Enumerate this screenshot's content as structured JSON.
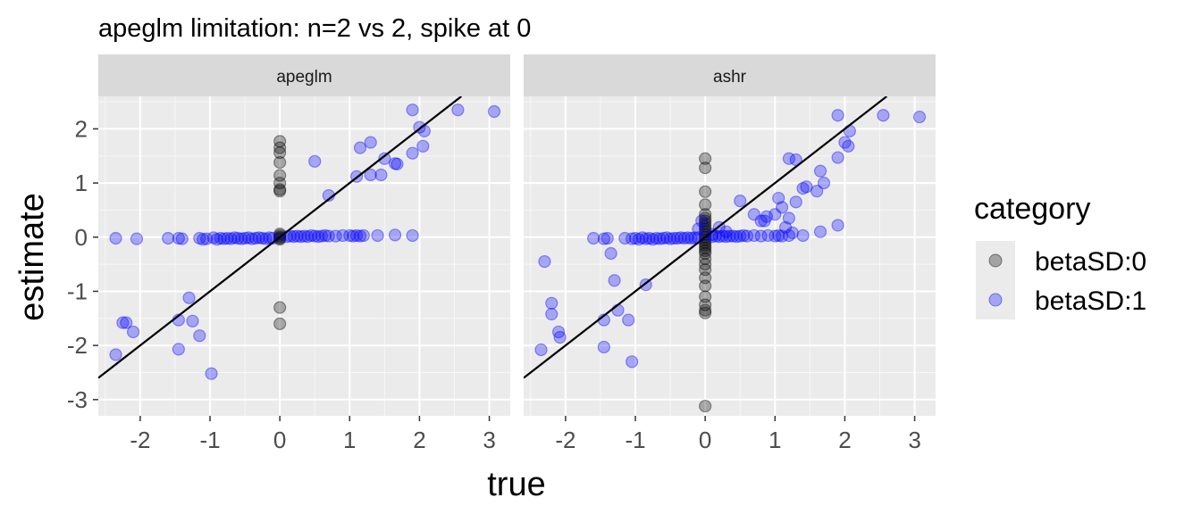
{
  "title": "apeglm limitation: n=2 vs 2, spike at 0",
  "chart_data": {
    "type": "scatter",
    "xlabel": "true",
    "ylabel": "estimate",
    "xlim": [
      -2.6,
      3.3
    ],
    "ylim": [
      -3.3,
      2.6
    ],
    "x_ticks": [
      -2,
      -1,
      0,
      1,
      2,
      3
    ],
    "y_ticks": [
      -3,
      -2,
      -1,
      0,
      1,
      2
    ],
    "x_tick_labels": [
      "-2",
      "-1",
      "0",
      "1",
      "2",
      "3"
    ],
    "y_tick_labels": [
      "-3",
      "-2",
      "-1",
      "0",
      "1",
      "2"
    ],
    "grid": true,
    "reference_line": "y = x",
    "legend": {
      "title": "category",
      "placement": "right",
      "entries": [
        {
          "label": "betaSD:0",
          "color": "#000000"
        },
        {
          "label": "betaSD:1",
          "color": "#0000ff"
        }
      ]
    },
    "panels": [
      {
        "label": "apeglm",
        "series": [
          {
            "name": "betaSD:0",
            "color": "#000000",
            "points": [
              [
                0,
                1.77
              ],
              [
                0,
                1.65
              ],
              [
                0,
                1.56
              ],
              [
                0,
                1.38
              ],
              [
                0,
                1.14
              ],
              [
                0,
                1.0
              ],
              [
                0,
                0.88
              ],
              [
                0,
                0.85
              ],
              [
                0,
                0.06
              ],
              [
                0,
                0.03
              ],
              [
                0,
                0.0
              ],
              [
                0,
                -0.02
              ],
              [
                0,
                -0.04
              ],
              [
                0,
                -1.3
              ],
              [
                0,
                -1.6
              ]
            ]
          },
          {
            "name": "betaSD:1",
            "color": "#0000ff",
            "points": [
              [
                -2.35,
                -0.02
              ],
              [
                -2.05,
                -0.03
              ],
              [
                -1.6,
                -0.02
              ],
              [
                -1.45,
                -0.02
              ],
              [
                -1.4,
                -0.03
              ],
              [
                -1.15,
                -0.02
              ],
              [
                -1.1,
                -0.04
              ],
              [
                -1.05,
                -0.03
              ],
              [
                -0.95,
                -0.01
              ],
              [
                -0.9,
                -0.04
              ],
              [
                -0.85,
                -0.02
              ],
              [
                -0.8,
                -0.03
              ],
              [
                -0.75,
                -0.02
              ],
              [
                -0.7,
                -0.03
              ],
              [
                -0.65,
                -0.01
              ],
              [
                -0.6,
                -0.02
              ],
              [
                -0.55,
                -0.03
              ],
              [
                -0.5,
                -0.02
              ],
              [
                -0.45,
                -0.01
              ],
              [
                -0.4,
                -0.03
              ],
              [
                -0.35,
                -0.02
              ],
              [
                -0.3,
                -0.01
              ],
              [
                -0.25,
                -0.02
              ],
              [
                -0.2,
                -0.03
              ],
              [
                -0.15,
                -0.01
              ],
              [
                -0.1,
                -0.02
              ],
              [
                0.1,
                0.01
              ],
              [
                0.15,
                0.02
              ],
              [
                0.2,
                0.01
              ],
              [
                0.25,
                0.02
              ],
              [
                0.3,
                0.01
              ],
              [
                0.35,
                0.02
              ],
              [
                0.4,
                0.01
              ],
              [
                0.45,
                0.03
              ],
              [
                0.5,
                0.02
              ],
              [
                0.55,
                0.01
              ],
              [
                0.6,
                0.02
              ],
              [
                0.65,
                0.03
              ],
              [
                0.7,
                0.02
              ],
              [
                0.8,
                0.02
              ],
              [
                0.9,
                0.03
              ],
              [
                1.0,
                0.03
              ],
              [
                1.05,
                0.02
              ],
              [
                1.1,
                0.03
              ],
              [
                1.15,
                0.02
              ],
              [
                1.2,
                0.03
              ],
              [
                1.4,
                0.03
              ],
              [
                1.65,
                0.04
              ],
              [
                1.9,
                0.03
              ],
              [
                -2.35,
                -2.17
              ],
              [
                -2.25,
                -1.58
              ],
              [
                -2.2,
                -1.58
              ],
              [
                -2.1,
                -1.75
              ],
              [
                -1.45,
                -1.53
              ],
              [
                -1.45,
                -2.07
              ],
              [
                -1.3,
                -1.12
              ],
              [
                -1.25,
                -1.55
              ],
              [
                -1.15,
                -1.82
              ],
              [
                -0.98,
                -2.52
              ],
              [
                0.5,
                1.4
              ],
              [
                0.7,
                0.77
              ],
              [
                1.1,
                1.12
              ],
              [
                1.15,
                1.65
              ],
              [
                1.3,
                1.75
              ],
              [
                1.3,
                1.15
              ],
              [
                1.45,
                1.15
              ],
              [
                1.5,
                1.45
              ],
              [
                1.65,
                1.36
              ],
              [
                1.68,
                1.35
              ],
              [
                1.9,
                2.35
              ],
              [
                1.9,
                1.55
              ],
              [
                2.0,
                2.03
              ],
              [
                2.05,
                1.68
              ],
              [
                2.07,
                1.96
              ],
              [
                2.55,
                2.35
              ],
              [
                3.07,
                2.32
              ]
            ]
          }
        ]
      },
      {
        "label": "ashr",
        "series": [
          {
            "name": "betaSD:0",
            "color": "#000000",
            "points": [
              [
                0,
                1.45
              ],
              [
                0,
                1.28
              ],
              [
                0,
                0.84
              ],
              [
                0,
                0.6
              ],
              [
                0,
                0.42
              ],
              [
                0,
                0.35
              ],
              [
                0,
                0.3
              ],
              [
                0,
                0.25
              ],
              [
                0,
                0.2
              ],
              [
                0,
                0.15
              ],
              [
                0,
                0.1
              ],
              [
                0,
                0.05
              ],
              [
                0,
                0.0
              ],
              [
                0,
                -0.05
              ],
              [
                0,
                -0.1
              ],
              [
                0,
                -0.15
              ],
              [
                0,
                -0.2
              ],
              [
                0,
                -0.25
              ],
              [
                0,
                -0.3
              ],
              [
                0,
                -0.4
              ],
              [
                0,
                -0.5
              ],
              [
                0,
                -0.6
              ],
              [
                0,
                -0.75
              ],
              [
                0,
                -0.9
              ],
              [
                0,
                -1.1
              ],
              [
                0,
                -1.25
              ],
              [
                0,
                -1.35
              ],
              [
                0,
                -1.4
              ],
              [
                0,
                -3.12
              ]
            ]
          },
          {
            "name": "betaSD:1",
            "color": "#0000ff",
            "points": [
              [
                -1.6,
                -0.02
              ],
              [
                -1.45,
                -0.03
              ],
              [
                -1.4,
                -0.02
              ],
              [
                -1.15,
                -0.02
              ],
              [
                -1.05,
                -0.03
              ],
              [
                -1.0,
                -0.02
              ],
              [
                -0.95,
                -0.04
              ],
              [
                -0.9,
                -0.01
              ],
              [
                -0.85,
                -0.03
              ],
              [
                -0.8,
                -0.02
              ],
              [
                -0.75,
                -0.04
              ],
              [
                -0.7,
                -0.02
              ],
              [
                -0.65,
                -0.03
              ],
              [
                -0.6,
                -0.02
              ],
              [
                -0.55,
                -0.01
              ],
              [
                -0.5,
                -0.03
              ],
              [
                -0.45,
                -0.02
              ],
              [
                -0.4,
                -0.02
              ],
              [
                -0.35,
                -0.01
              ],
              [
                -0.3,
                -0.02
              ],
              [
                -0.25,
                -0.01
              ],
              [
                -0.2,
                -0.02
              ],
              [
                -0.15,
                -0.01
              ],
              [
                -0.1,
                -0.01
              ],
              [
                0.1,
                0.01
              ],
              [
                0.15,
                0.02
              ],
              [
                0.2,
                0.01
              ],
              [
                0.25,
                0.02
              ],
              [
                0.3,
                0.01
              ],
              [
                0.35,
                0.02
              ],
              [
                0.4,
                0.02
              ],
              [
                0.45,
                0.01
              ],
              [
                0.5,
                0.02
              ],
              [
                0.55,
                0.03
              ],
              [
                0.6,
                0.02
              ],
              [
                0.7,
                0.03
              ],
              [
                0.8,
                0.02
              ],
              [
                0.9,
                0.03
              ],
              [
                1.0,
                0.02
              ],
              [
                1.05,
                0.03
              ],
              [
                1.1,
                0.02
              ],
              [
                1.2,
                0.03
              ],
              [
                1.4,
                0.03
              ],
              [
                1.65,
                0.1
              ],
              [
                -2.35,
                -2.08
              ],
              [
                -2.3,
                -0.45
              ],
              [
                -2.2,
                -1.22
              ],
              [
                -2.2,
                -1.42
              ],
              [
                -2.1,
                -1.75
              ],
              [
                -2.08,
                -1.85
              ],
              [
                -1.45,
                -1.53
              ],
              [
                -1.45,
                -2.03
              ],
              [
                -1.35,
                -0.3
              ],
              [
                -1.3,
                -0.8
              ],
              [
                -1.25,
                -1.35
              ],
              [
                -1.1,
                -1.53
              ],
              [
                -1.05,
                -2.3
              ],
              [
                -0.85,
                -0.88
              ],
              [
                -0.1,
                0.15
              ],
              [
                -0.05,
                0.3
              ],
              [
                0.1,
                0.05
              ],
              [
                0.2,
                0.18
              ],
              [
                0.3,
                0.1
              ],
              [
                0.5,
                0.67
              ],
              [
                0.7,
                0.42
              ],
              [
                0.8,
                0.3
              ],
              [
                0.85,
                0.3
              ],
              [
                0.88,
                0.38
              ],
              [
                1.0,
                0.42
              ],
              [
                1.05,
                0.72
              ],
              [
                1.1,
                0.55
              ],
              [
                1.15,
                0.18
              ],
              [
                1.2,
                0.35
              ],
              [
                1.25,
                0.08
              ],
              [
                1.3,
                0.65
              ],
              [
                1.4,
                0.9
              ],
              [
                1.45,
                0.93
              ],
              [
                1.2,
                1.45
              ],
              [
                1.3,
                1.43
              ],
              [
                1.6,
                0.85
              ],
              [
                1.65,
                1.22
              ],
              [
                1.7,
                1.0
              ],
              [
                1.9,
                1.47
              ],
              [
                1.9,
                0.22
              ],
              [
                1.9,
                2.25
              ],
              [
                2.0,
                1.75
              ],
              [
                2.05,
                1.68
              ],
              [
                2.07,
                1.96
              ],
              [
                2.55,
                2.25
              ],
              [
                3.07,
                2.22
              ]
            ]
          }
        ]
      }
    ]
  }
}
